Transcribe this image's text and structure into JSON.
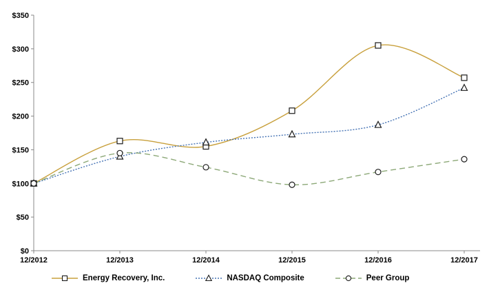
{
  "chart_data": {
    "type": "line",
    "title": "",
    "categories": [
      "12/2012",
      "12/2013",
      "12/2014",
      "12/2015",
      "12/2016",
      "12/2017"
    ],
    "series": [
      {
        "name": "Energy Recovery, Inc.",
        "values": [
          100,
          163,
          155,
          208,
          305,
          257
        ],
        "color": "#C8A03C",
        "marker": "square",
        "dash": "solid"
      },
      {
        "name": "NASDAQ Composite",
        "values": [
          100,
          140,
          161,
          173,
          187,
          242
        ],
        "color": "#4472B4",
        "marker": "triangle",
        "dash": "dotted"
      },
      {
        "name": "Peer Group",
        "values": [
          100,
          145,
          124,
          98,
          117,
          136
        ],
        "color": "#8CA877",
        "marker": "circle",
        "dash": "dashed"
      }
    ],
    "ylim": [
      0,
      350
    ],
    "ytick_step": 50,
    "ytick_labels": [
      "$0",
      "$50",
      "$100",
      "$150",
      "$200",
      "$250",
      "$300",
      "$350"
    ],
    "xlabel": "",
    "ylabel": "",
    "grid": false,
    "legend_position": "bottom",
    "smoothed_lines": true,
    "marker_outline": "#1a1a1a",
    "marker_fill": "#ffffff",
    "axis_color": "#888888",
    "text_color": "#000000",
    "background": "#ffffff"
  }
}
